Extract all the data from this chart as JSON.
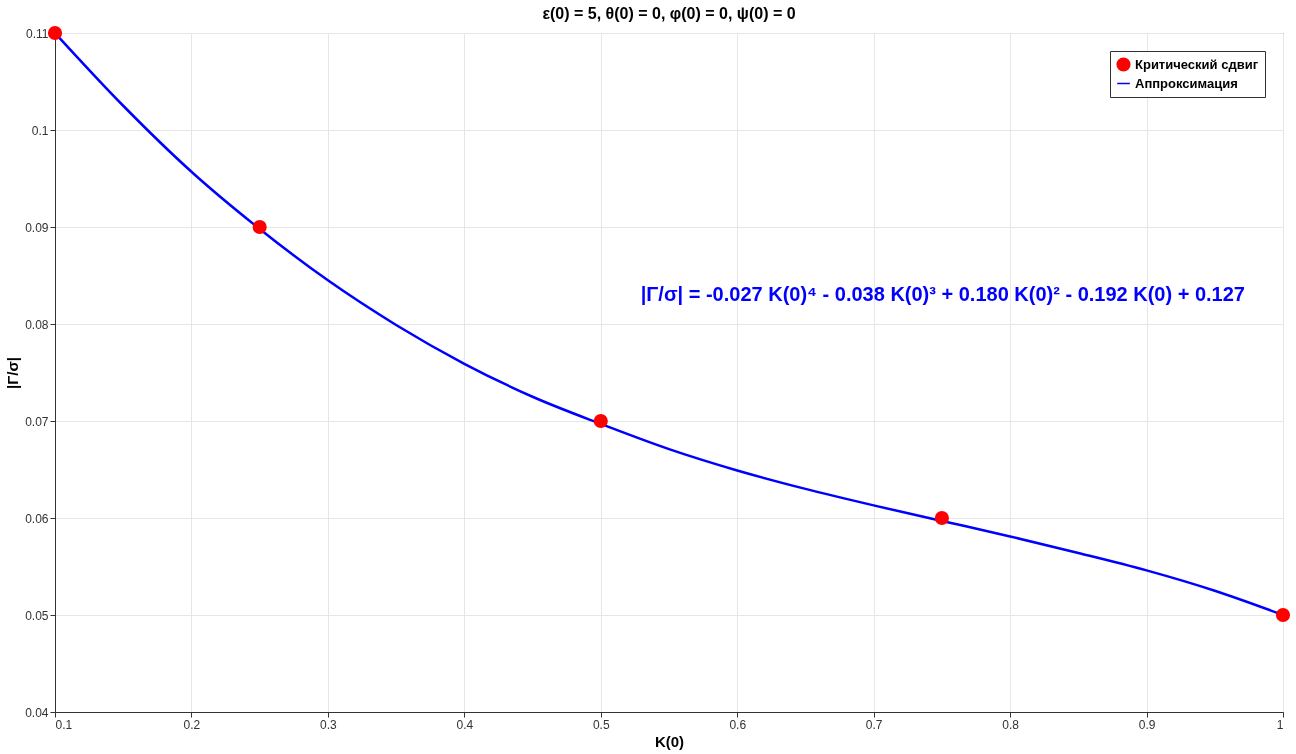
{
  "chart_data": {
    "type": "scatter",
    "title": "ε(0) = 5, θ(0) = 0, φ(0) = 0, ψ(0) = 0",
    "xlabel": "K(0)",
    "ylabel": "|Γ/σ|",
    "x": [
      0.1,
      0.25,
      0.5,
      0.75,
      1
    ],
    "series": [
      {
        "name": "Критический сдвиг",
        "color": "#ff0000",
        "marker": "circle",
        "values": [
          0.11,
          0.09,
          0.07,
          0.06,
          0.05
        ]
      },
      {
        "name": "Аппроксимация",
        "type": "line",
        "color": "#0000ff",
        "line_style": "solid",
        "x": [
          0.1,
          0.15,
          0.2,
          0.25,
          0.3,
          0.35,
          0.4,
          0.45,
          0.5,
          0.55,
          0.6,
          0.65,
          0.7,
          0.75,
          0.8,
          0.85,
          0.9,
          0.95,
          1
        ],
        "values": [
          0.11,
          0.1025,
          0.0957,
          0.0898,
          0.0845,
          0.0799,
          0.0759,
          0.0725,
          0.0697,
          0.0671,
          0.0649,
          0.063,
          0.0613,
          0.0597,
          0.0581,
          0.0564,
          0.0546,
          0.0525,
          0.05
        ]
      }
    ],
    "annotations": [
      "|Γ/σ| = -0.027 K(0)⁴ - 0.038 K(0)³ + 0.180 K(0)² - 0.192 K(0) + 0.127"
    ],
    "xlim": [
      0.1,
      1
    ],
    "ylim": [
      0.04,
      0.11
    ],
    "xticks": [
      0.1,
      0.2,
      0.3,
      0.4,
      0.5,
      0.6,
      0.7,
      0.8,
      0.9,
      1
    ],
    "yticks": [
      0.04,
      0.05,
      0.06,
      0.07,
      0.08,
      0.09,
      0.1,
      0.11
    ],
    "grid": true,
    "legend": "top right"
  }
}
